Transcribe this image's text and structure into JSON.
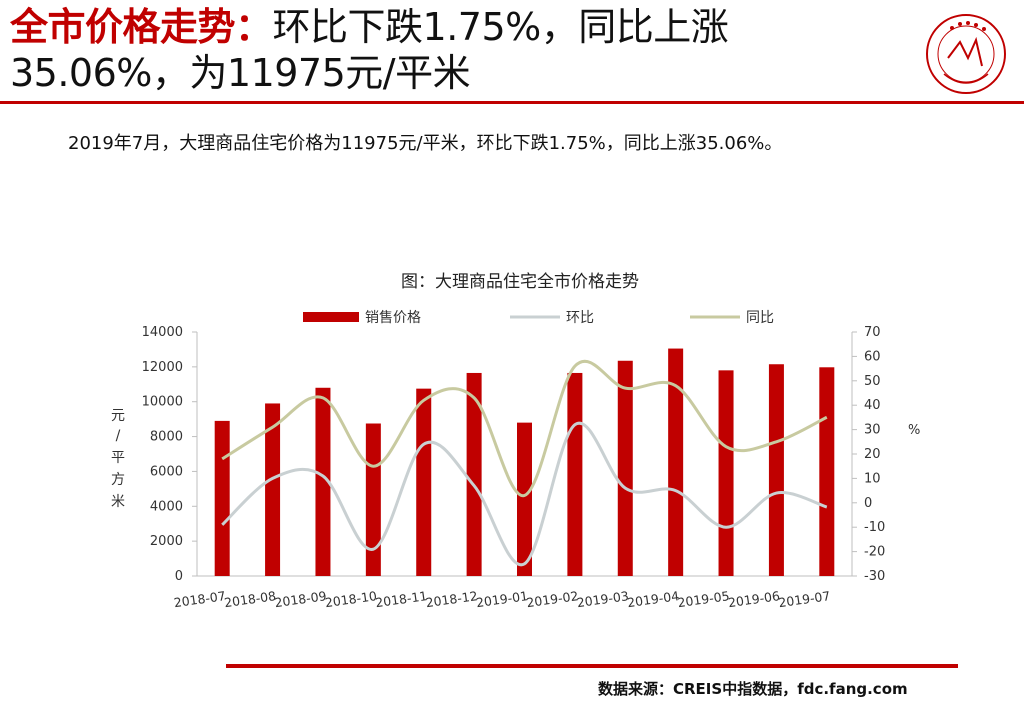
{
  "header": {
    "title_accent": "全市价格走势：",
    "title_rest": "环比下跌1.75%，同比上涨",
    "title_line2": "35.06%，为11975元/平米"
  },
  "logo": {
    "icon": "china-index-academy-seal-icon",
    "color": "#c00000"
  },
  "summary": {
    "text": "2019年7月，大理商品住宅价格为11975元/平米，环比下跌1.75%，同比上涨35.06%。"
  },
  "colors": {
    "accent": "#c00000",
    "bar": "#c00000",
    "mom_line": "#c9d0d2",
    "yoy_line": "#c8caa0"
  },
  "chart_data": {
    "type": "bar",
    "title": "图：大理商品住宅全市价格走势",
    "categories": [
      "2018-07",
      "2018-08",
      "2018-09",
      "2018-10",
      "2018-11",
      "2018-12",
      "2019-01",
      "2019-02",
      "2019-03",
      "2019-04",
      "2019-05",
      "2019-06",
      "2019-07"
    ],
    "ylabel_left": "元/平方米",
    "ylabel_right": "%",
    "ylim_left": [
      0,
      14000
    ],
    "ylim_right": [
      -30,
      70
    ],
    "yticks_left": [
      "0",
      "2000",
      "4000",
      "6000",
      "8000",
      "10000",
      "12000",
      "14000"
    ],
    "yticks_right": [
      "-30",
      "-20",
      "-10",
      "0",
      "10",
      "20",
      "30",
      "40",
      "50",
      "60",
      "70"
    ],
    "legend_position": "top",
    "grid": false,
    "series": [
      {
        "name": "销售价格",
        "kind": "bar",
        "axis": "left",
        "values": [
          8900,
          9900,
          10800,
          8750,
          10750,
          11650,
          8800,
          11650,
          12350,
          13050,
          11800,
          12150,
          11975
        ]
      },
      {
        "name": "环比",
        "kind": "line",
        "axis": "right",
        "values": [
          -9,
          10,
          11,
          -19,
          24,
          7,
          -25,
          32,
          6,
          5,
          -10,
          4,
          -1.75
        ]
      },
      {
        "name": "同比",
        "kind": "line",
        "axis": "right",
        "values": [
          18,
          31,
          43,
          15,
          42,
          43,
          3,
          56,
          47,
          48,
          23,
          25,
          35.06
        ]
      }
    ]
  },
  "footer": {
    "source": "数据来源：CREIS中指数据，fdc.fang.com"
  }
}
